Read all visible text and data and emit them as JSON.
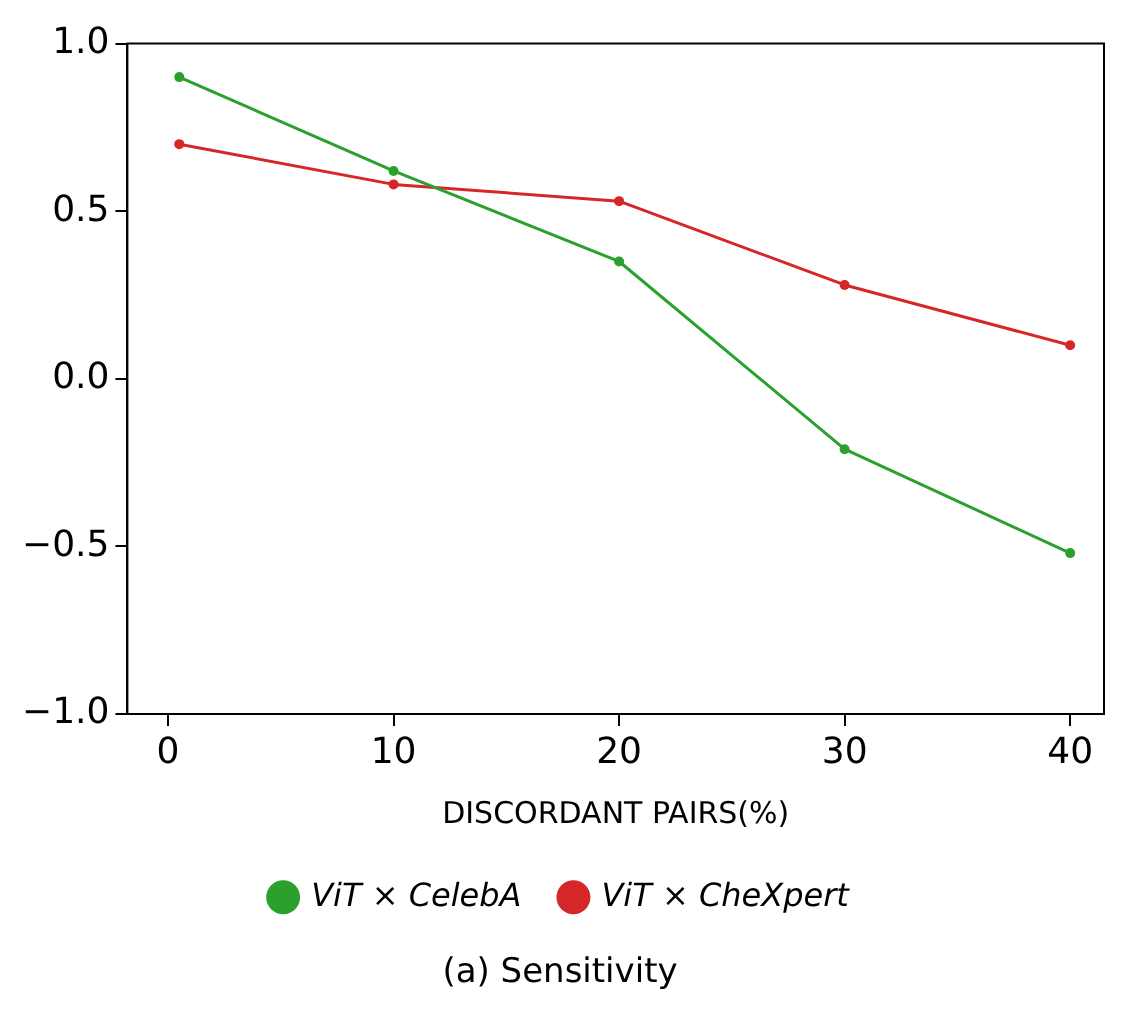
{
  "chart_data": {
    "type": "line",
    "title": "(a) Sensitivity",
    "xlabel": "DISCORDANT PAIRS(%)",
    "x": [
      0.5,
      10,
      20,
      30,
      40
    ],
    "series": [
      {
        "name": "ViT × CelebA",
        "color": "#2ca02c",
        "values": [
          0.9,
          0.62,
          0.35,
          -0.21,
          -0.52
        ]
      },
      {
        "name": "ViT × CheXpert",
        "color": "#d62728",
        "values": [
          0.7,
          0.58,
          0.53,
          0.28,
          0.1
        ]
      }
    ],
    "xlim": [
      -1.8,
      41.5
    ],
    "xticks": [
      0,
      10,
      20,
      30,
      40
    ],
    "ylim": [
      -1.0,
      1.0
    ],
    "yticks": [
      {
        "value": -1,
        "label": "−1.0"
      },
      {
        "value": -0.5,
        "label": "−0.5"
      },
      {
        "value": 0,
        "label": "0.0"
      },
      {
        "value": 0.5,
        "label": "0.5"
      },
      {
        "value": 1,
        "label": "1.0"
      }
    ],
    "grid": false,
    "legend": "bottom",
    "marker": "circle",
    "line_style": "solid"
  }
}
